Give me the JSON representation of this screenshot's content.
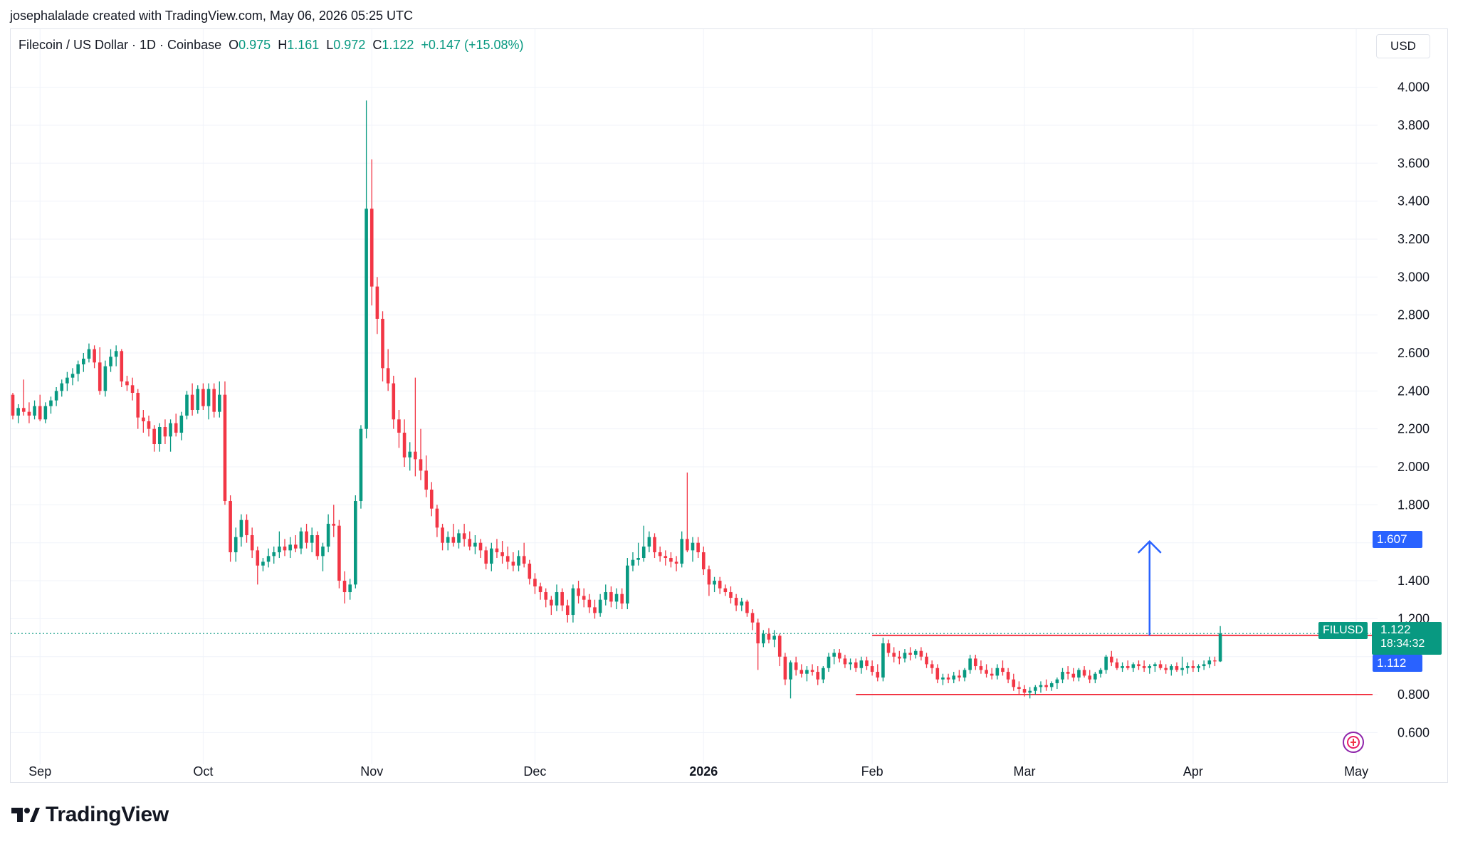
{
  "header": {
    "credit": "josephalalade created with TradingView.com, May 06, 2026 05:25 UTC"
  },
  "legend": {
    "symbol": "Filecoin / US Dollar · 1D · Coinbase",
    "open_label": "O",
    "open": "0.975",
    "high_label": "H",
    "high": "1.161",
    "low_label": "L",
    "low": "0.972",
    "close_label": "C",
    "close": "1.122",
    "change": "+0.147 (+15.08%)"
  },
  "currency_button": "USD",
  "price_labels": {
    "symbol_tag": "FILUSD",
    "last_price": "1.122",
    "countdown": "18:34:32",
    "level_upper": "1.607",
    "level_lower": "1.112"
  },
  "branding": {
    "logo_text": "TradingView"
  },
  "colors": {
    "up": "#089981",
    "down": "#f23645",
    "grid": "#f0f3fa",
    "support_line": "#f23645",
    "arrow": "#2962ff",
    "price_tag": "#089981",
    "level_tag": "#2962ff"
  },
  "chart_data": {
    "type": "candlestick",
    "title": "Filecoin / US Dollar · 1D · Coinbase",
    "y_axis": {
      "ticks": [
        "4.000",
        "3.800",
        "3.600",
        "3.400",
        "3.200",
        "3.000",
        "2.800",
        "2.600",
        "2.400",
        "2.200",
        "2.000",
        "1.800",
        "1.400",
        "1.200",
        "0.800",
        "0.600"
      ],
      "range": [
        0.5,
        4.2
      ]
    },
    "x_axis": {
      "ticks": [
        {
          "label": "Sep",
          "date": "2025-09-01",
          "bold": false
        },
        {
          "label": "Oct",
          "date": "2025-10-01",
          "bold": false
        },
        {
          "label": "Nov",
          "date": "2025-11-01",
          "bold": false
        },
        {
          "label": "Dec",
          "date": "2025-12-01",
          "bold": false
        },
        {
          "label": "2026",
          "date": "2026-01-01",
          "bold": true
        },
        {
          "label": "Feb",
          "date": "2026-02-01",
          "bold": false
        },
        {
          "label": "Mar",
          "date": "2026-03-01",
          "bold": false
        },
        {
          "label": "Apr",
          "date": "2026-04-01",
          "bold": false
        },
        {
          "label": "May",
          "date": "2026-05-01",
          "bold": false
        }
      ]
    },
    "start_date": "2025-08-27",
    "candles": [
      [
        2.38,
        2.39,
        2.25,
        2.27
      ],
      [
        2.27,
        2.33,
        2.23,
        2.31
      ],
      [
        2.31,
        2.46,
        2.27,
        2.29
      ],
      [
        2.29,
        2.34,
        2.23,
        2.27
      ],
      [
        2.27,
        2.35,
        2.25,
        2.32
      ],
      [
        2.32,
        2.38,
        2.24,
        2.25
      ],
      [
        2.25,
        2.34,
        2.23,
        2.32
      ],
      [
        2.32,
        2.37,
        2.28,
        2.35
      ],
      [
        2.35,
        2.42,
        2.32,
        2.4
      ],
      [
        2.4,
        2.46,
        2.37,
        2.44
      ],
      [
        2.44,
        2.5,
        2.4,
        2.47
      ],
      [
        2.47,
        2.52,
        2.43,
        2.49
      ],
      [
        2.49,
        2.56,
        2.45,
        2.54
      ],
      [
        2.54,
        2.6,
        2.5,
        2.57
      ],
      [
        2.57,
        2.65,
        2.55,
        2.62
      ],
      [
        2.62,
        2.64,
        2.52,
        2.55
      ],
      [
        2.55,
        2.63,
        2.38,
        2.4
      ],
      [
        2.4,
        2.56,
        2.37,
        2.53
      ],
      [
        2.53,
        2.62,
        2.5,
        2.58
      ],
      [
        2.58,
        2.64,
        2.53,
        2.61
      ],
      [
        2.61,
        2.62,
        2.42,
        2.45
      ],
      [
        2.45,
        2.48,
        2.4,
        2.43
      ],
      [
        2.43,
        2.47,
        2.35,
        2.39
      ],
      [
        2.39,
        2.41,
        2.2,
        2.26
      ],
      [
        2.26,
        2.3,
        2.18,
        2.24
      ],
      [
        2.24,
        2.27,
        2.16,
        2.2
      ],
      [
        2.2,
        2.22,
        2.08,
        2.12
      ],
      [
        2.12,
        2.23,
        2.08,
        2.21
      ],
      [
        2.21,
        2.25,
        2.12,
        2.16
      ],
      [
        2.16,
        2.25,
        2.08,
        2.23
      ],
      [
        2.23,
        2.28,
        2.16,
        2.18
      ],
      [
        2.18,
        2.29,
        2.14,
        2.27
      ],
      [
        2.27,
        2.4,
        2.25,
        2.38
      ],
      [
        2.38,
        2.44,
        2.27,
        2.3
      ],
      [
        2.3,
        2.43,
        2.28,
        2.41
      ],
      [
        2.41,
        2.44,
        2.3,
        2.32
      ],
      [
        2.32,
        2.44,
        2.25,
        2.41
      ],
      [
        2.41,
        2.44,
        2.26,
        2.29
      ],
      [
        2.29,
        2.45,
        2.26,
        2.38
      ],
      [
        2.38,
        2.45,
        1.8,
        1.82
      ],
      [
        1.82,
        1.85,
        1.5,
        1.55
      ],
      [
        1.55,
        1.68,
        1.5,
        1.63
      ],
      [
        1.63,
        1.75,
        1.58,
        1.72
      ],
      [
        1.72,
        1.75,
        1.6,
        1.64
      ],
      [
        1.64,
        1.68,
        1.52,
        1.56
      ],
      [
        1.56,
        1.58,
        1.38,
        1.48
      ],
      [
        1.48,
        1.52,
        1.45,
        1.5
      ],
      [
        1.5,
        1.57,
        1.47,
        1.53
      ],
      [
        1.53,
        1.58,
        1.49,
        1.55
      ],
      [
        1.55,
        1.66,
        1.52,
        1.58
      ],
      [
        1.58,
        1.62,
        1.53,
        1.56
      ],
      [
        1.56,
        1.63,
        1.52,
        1.59
      ],
      [
        1.59,
        1.64,
        1.55,
        1.57
      ],
      [
        1.57,
        1.68,
        1.54,
        1.66
      ],
      [
        1.66,
        1.7,
        1.57,
        1.6
      ],
      [
        1.6,
        1.68,
        1.55,
        1.64
      ],
      [
        1.64,
        1.66,
        1.51,
        1.53
      ],
      [
        1.53,
        1.6,
        1.45,
        1.58
      ],
      [
        1.58,
        1.75,
        1.55,
        1.7
      ],
      [
        1.7,
        1.8,
        1.63,
        1.69
      ],
      [
        1.69,
        1.72,
        1.36,
        1.4
      ],
      [
        1.4,
        1.45,
        1.28,
        1.34
      ],
      [
        1.34,
        1.41,
        1.3,
        1.38
      ],
      [
        1.38,
        1.85,
        1.36,
        1.82
      ],
      [
        1.82,
        2.22,
        1.78,
        2.2
      ],
      [
        2.2,
        3.93,
        2.15,
        3.36
      ],
      [
        3.36,
        3.62,
        2.85,
        2.95
      ],
      [
        2.95,
        3.0,
        2.7,
        2.78
      ],
      [
        2.78,
        2.82,
        2.45,
        2.52
      ],
      [
        2.52,
        2.62,
        2.4,
        2.44
      ],
      [
        2.44,
        2.48,
        2.2,
        2.25
      ],
      [
        2.25,
        2.3,
        2.1,
        2.18
      ],
      [
        2.18,
        2.25,
        2.0,
        2.05
      ],
      [
        2.05,
        2.13,
        1.98,
        2.08
      ],
      [
        2.08,
        2.47,
        1.95,
        2.04
      ],
      [
        2.04,
        2.2,
        1.93,
        1.98
      ],
      [
        1.98,
        2.06,
        1.84,
        1.88
      ],
      [
        1.88,
        1.92,
        1.74,
        1.78
      ],
      [
        1.78,
        1.8,
        1.63,
        1.68
      ],
      [
        1.68,
        1.7,
        1.56,
        1.6
      ],
      [
        1.6,
        1.66,
        1.56,
        1.63
      ],
      [
        1.63,
        1.7,
        1.58,
        1.6
      ],
      [
        1.6,
        1.67,
        1.57,
        1.65
      ],
      [
        1.65,
        1.7,
        1.58,
        1.62
      ],
      [
        1.62,
        1.66,
        1.56,
        1.58
      ],
      [
        1.58,
        1.64,
        1.54,
        1.6
      ],
      [
        1.6,
        1.62,
        1.52,
        1.56
      ],
      [
        1.56,
        1.58,
        1.46,
        1.49
      ],
      [
        1.49,
        1.6,
        1.45,
        1.57
      ],
      [
        1.57,
        1.62,
        1.52,
        1.55
      ],
      [
        1.55,
        1.61,
        1.49,
        1.53
      ],
      [
        1.53,
        1.58,
        1.46,
        1.5
      ],
      [
        1.5,
        1.55,
        1.45,
        1.48
      ],
      [
        1.48,
        1.56,
        1.45,
        1.53
      ],
      [
        1.53,
        1.6,
        1.47,
        1.49
      ],
      [
        1.49,
        1.51,
        1.38,
        1.41
      ],
      [
        1.41,
        1.44,
        1.33,
        1.37
      ],
      [
        1.37,
        1.39,
        1.3,
        1.34
      ],
      [
        1.34,
        1.36,
        1.26,
        1.3
      ],
      [
        1.3,
        1.32,
        1.22,
        1.27
      ],
      [
        1.27,
        1.38,
        1.24,
        1.34
      ],
      [
        1.34,
        1.36,
        1.24,
        1.27
      ],
      [
        1.27,
        1.3,
        1.18,
        1.22
      ],
      [
        1.22,
        1.38,
        1.18,
        1.36
      ],
      [
        1.36,
        1.4,
        1.28,
        1.32
      ],
      [
        1.32,
        1.36,
        1.26,
        1.3
      ],
      [
        1.3,
        1.33,
        1.23,
        1.26
      ],
      [
        1.26,
        1.3,
        1.2,
        1.23
      ],
      [
        1.23,
        1.33,
        1.21,
        1.3
      ],
      [
        1.3,
        1.38,
        1.27,
        1.34
      ],
      [
        1.34,
        1.37,
        1.26,
        1.29
      ],
      [
        1.29,
        1.36,
        1.25,
        1.33
      ],
      [
        1.33,
        1.36,
        1.25,
        1.28
      ],
      [
        1.28,
        1.52,
        1.25,
        1.48
      ],
      [
        1.48,
        1.55,
        1.45,
        1.51
      ],
      [
        1.51,
        1.6,
        1.48,
        1.52
      ],
      [
        1.52,
        1.69,
        1.5,
        1.58
      ],
      [
        1.58,
        1.66,
        1.55,
        1.63
      ],
      [
        1.63,
        1.65,
        1.52,
        1.55
      ],
      [
        1.55,
        1.58,
        1.5,
        1.53
      ],
      [
        1.53,
        1.56,
        1.48,
        1.52
      ],
      [
        1.52,
        1.55,
        1.47,
        1.5
      ],
      [
        1.5,
        1.53,
        1.45,
        1.49
      ],
      [
        1.49,
        1.66,
        1.47,
        1.62
      ],
      [
        1.62,
        1.97,
        1.55,
        1.56
      ],
      [
        1.56,
        1.63,
        1.5,
        1.6
      ],
      [
        1.6,
        1.63,
        1.52,
        1.55
      ],
      [
        1.55,
        1.58,
        1.43,
        1.46
      ],
      [
        1.46,
        1.48,
        1.32,
        1.38
      ],
      [
        1.38,
        1.42,
        1.34,
        1.4
      ],
      [
        1.4,
        1.42,
        1.33,
        1.36
      ],
      [
        1.36,
        1.38,
        1.32,
        1.34
      ],
      [
        1.34,
        1.37,
        1.28,
        1.31
      ],
      [
        1.31,
        1.33,
        1.24,
        1.27
      ],
      [
        1.27,
        1.31,
        1.24,
        1.29
      ],
      [
        1.29,
        1.3,
        1.21,
        1.23
      ],
      [
        1.23,
        1.25,
        1.14,
        1.18
      ],
      [
        1.18,
        1.2,
        0.93,
        1.07
      ],
      [
        1.07,
        1.14,
        1.05,
        1.12
      ],
      [
        1.12,
        1.15,
        1.07,
        1.09
      ],
      [
        1.09,
        1.14,
        1.05,
        1.11
      ],
      [
        1.11,
        1.12,
        0.95,
        1.0
      ],
      [
        1.0,
        1.02,
        0.85,
        0.88
      ],
      [
        0.88,
        0.98,
        0.78,
        0.97
      ],
      [
        0.97,
        1.0,
        0.9,
        0.93
      ],
      [
        0.93,
        0.96,
        0.89,
        0.91
      ],
      [
        0.91,
        0.95,
        0.87,
        0.93
      ],
      [
        0.93,
        0.96,
        0.9,
        0.92
      ],
      [
        0.92,
        0.95,
        0.85,
        0.88
      ],
      [
        0.88,
        0.95,
        0.86,
        0.94
      ],
      [
        0.94,
        1.02,
        0.92,
        1.0
      ],
      [
        1.0,
        1.04,
        0.96,
        1.02
      ],
      [
        1.02,
        1.04,
        0.97,
        0.99
      ],
      [
        0.99,
        1.01,
        0.94,
        0.96
      ],
      [
        0.96,
        0.99,
        0.93,
        0.97
      ],
      [
        0.97,
        0.99,
        0.92,
        0.94
      ],
      [
        0.94,
        1.0,
        0.91,
        0.98
      ],
      [
        0.98,
        1.0,
        0.93,
        0.95
      ],
      [
        0.95,
        0.98,
        0.9,
        0.92
      ],
      [
        0.92,
        0.96,
        0.87,
        0.89
      ],
      [
        0.89,
        1.1,
        0.87,
        1.07
      ],
      [
        1.07,
        1.09,
        1.0,
        1.02
      ],
      [
        1.02,
        1.05,
        0.97,
        1.0
      ],
      [
        1.0,
        1.03,
        0.96,
        0.99
      ],
      [
        0.99,
        1.04,
        0.97,
        1.02
      ],
      [
        1.02,
        1.05,
        0.98,
        1.01
      ],
      [
        1.01,
        1.04,
        0.99,
        1.03
      ],
      [
        1.03,
        1.05,
        0.98,
        1.0
      ],
      [
        1.0,
        1.02,
        0.94,
        0.96
      ],
      [
        0.96,
        0.98,
        0.91,
        0.94
      ],
      [
        0.94,
        0.96,
        0.86,
        0.88
      ],
      [
        0.88,
        0.91,
        0.85,
        0.89
      ],
      [
        0.89,
        0.91,
        0.86,
        0.88
      ],
      [
        0.88,
        0.92,
        0.86,
        0.9
      ],
      [
        0.9,
        0.93,
        0.87,
        0.89
      ],
      [
        0.89,
        0.94,
        0.87,
        0.93
      ],
      [
        0.93,
        1.01,
        0.91,
        0.99
      ],
      [
        0.99,
        1.01,
        0.93,
        0.95
      ],
      [
        0.95,
        0.98,
        0.91,
        0.93
      ],
      [
        0.93,
        0.96,
        0.89,
        0.91
      ],
      [
        0.91,
        0.94,
        0.88,
        0.9
      ],
      [
        0.9,
        0.96,
        0.88,
        0.94
      ],
      [
        0.94,
        0.98,
        0.9,
        0.92
      ],
      [
        0.92,
        0.94,
        0.86,
        0.88
      ],
      [
        0.88,
        0.91,
        0.82,
        0.84
      ],
      [
        0.84,
        0.87,
        0.8,
        0.83
      ],
      [
        0.83,
        0.85,
        0.79,
        0.81
      ],
      [
        0.81,
        0.84,
        0.78,
        0.82
      ],
      [
        0.82,
        0.85,
        0.8,
        0.84
      ],
      [
        0.84,
        0.87,
        0.81,
        0.85
      ],
      [
        0.85,
        0.88,
        0.82,
        0.84
      ],
      [
        0.84,
        0.87,
        0.82,
        0.86
      ],
      [
        0.86,
        0.89,
        0.83,
        0.88
      ],
      [
        0.88,
        0.94,
        0.86,
        0.92
      ],
      [
        0.92,
        0.95,
        0.88,
        0.91
      ],
      [
        0.91,
        0.94,
        0.87,
        0.89
      ],
      [
        0.89,
        0.94,
        0.87,
        0.93
      ],
      [
        0.93,
        0.95,
        0.89,
        0.9
      ],
      [
        0.9,
        0.93,
        0.86,
        0.88
      ],
      [
        0.88,
        0.92,
        0.86,
        0.91
      ],
      [
        0.91,
        0.94,
        0.89,
        0.93
      ],
      [
        0.93,
        1.01,
        0.91,
        1.0
      ],
      [
        1.0,
        1.03,
        0.95,
        0.97
      ],
      [
        0.97,
        0.99,
        0.93,
        0.94
      ],
      [
        0.94,
        0.97,
        0.92,
        0.95
      ],
      [
        0.95,
        0.98,
        0.93,
        0.94
      ],
      [
        0.94,
        0.97,
        0.92,
        0.96
      ],
      [
        0.96,
        0.98,
        0.93,
        0.95
      ],
      [
        0.95,
        0.98,
        0.92,
        0.94
      ],
      [
        0.94,
        0.96,
        0.91,
        0.95
      ],
      [
        0.95,
        0.97,
        0.92,
        0.96
      ],
      [
        0.96,
        0.98,
        0.93,
        0.94
      ],
      [
        0.94,
        0.96,
        0.91,
        0.93
      ],
      [
        0.93,
        0.96,
        0.9,
        0.95
      ],
      [
        0.95,
        0.97,
        0.92,
        0.93
      ],
      [
        0.93,
        1.0,
        0.9,
        0.94
      ],
      [
        0.94,
        0.97,
        0.91,
        0.95
      ],
      [
        0.95,
        0.98,
        0.92,
        0.94
      ],
      [
        0.94,
        0.96,
        0.92,
        0.95
      ],
      [
        0.95,
        0.98,
        0.93,
        0.96
      ],
      [
        0.96,
        1.0,
        0.94,
        0.98
      ],
      [
        0.98,
        1.0,
        0.95,
        0.975
      ],
      [
        0.975,
        1.161,
        0.972,
        1.122
      ]
    ],
    "price_line": 1.122,
    "support_level": 0.8,
    "resistance_level": 1.112,
    "support_start_date": "2026-01-29",
    "resistance_start_date": "2026-02-01",
    "lines_end_date": "2026-05-04",
    "target_level": 1.607,
    "arrow_date": "2026-03-24"
  }
}
